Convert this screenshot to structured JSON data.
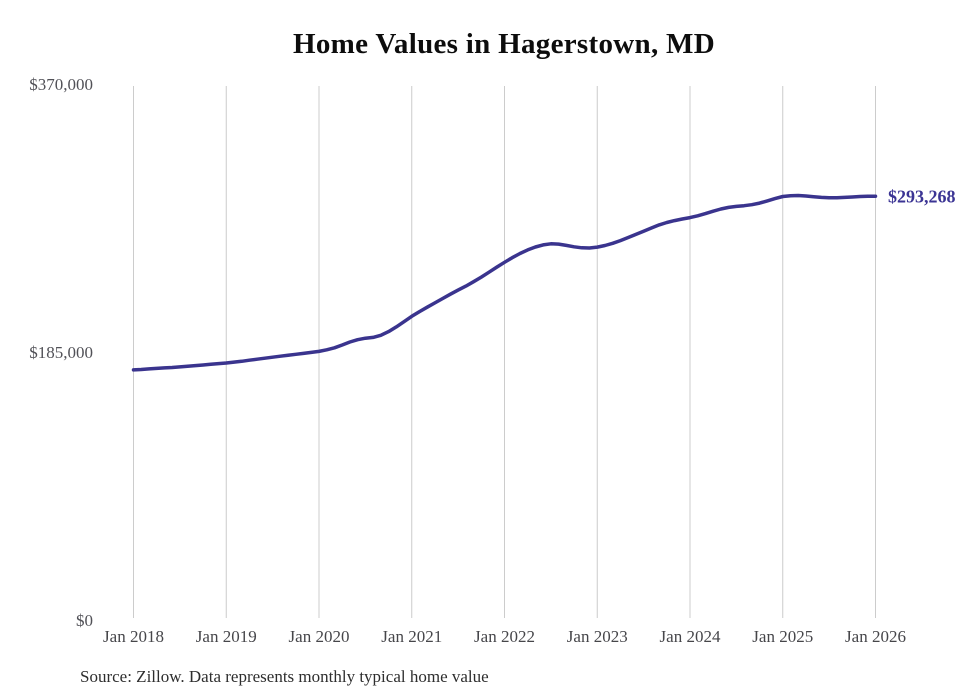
{
  "page": {
    "background": "#ffffff"
  },
  "chart_data": {
    "type": "line",
    "title": "Home Values in Hagerstown, MD",
    "xlabel": "",
    "ylabel": "",
    "ylim": [
      0,
      370000
    ],
    "grid": "vertical-only",
    "legend": "none",
    "x_tick_labels": [
      "Jan 2018",
      "Jan 2019",
      "Jan 2020",
      "Jan 2021",
      "Jan 2022",
      "Jan 2023",
      "Jan 2024",
      "Jan 2025",
      "Jan 2026"
    ],
    "y_tick_labels": [
      "$0",
      "$185,000",
      "$370,000"
    ],
    "colors": {
      "line": "#3a348e",
      "grid": "#cccccc",
      "title": "#0d0d0d",
      "axis_text": "#4a4a4f",
      "end_label": "#3b3494"
    },
    "series": [
      {
        "name": "Typical home value",
        "start": "Jan 2018",
        "end": "Jan 2026",
        "frequency": "monthly",
        "values": [
          173300,
          173600,
          174000,
          174400,
          174700,
          175000,
          175400,
          175800,
          176300,
          176700,
          177200,
          177700,
          178100,
          178700,
          179300,
          180000,
          180700,
          181400,
          182100,
          182800,
          183400,
          184100,
          184700,
          185400,
          186100,
          187200,
          188600,
          190500,
          192600,
          194200,
          195200,
          195800,
          197200,
          199800,
          203000,
          206600,
          210300,
          213600,
          216600,
          219600,
          222600,
          225600,
          228400,
          231200,
          234200,
          237400,
          240800,
          244300,
          247600,
          250800,
          253700,
          256200,
          258200,
          259600,
          260400,
          260200,
          259300,
          258300,
          257600,
          257500,
          258100,
          259200,
          260700,
          262600,
          264700,
          266900,
          269100,
          271300,
          273400,
          275100,
          276400,
          277500,
          278500,
          279700,
          281200,
          282900,
          284400,
          285500,
          286200,
          286700,
          287400,
          288500,
          290000,
          291600,
          293000,
          293600,
          293700,
          293400,
          292900,
          292400,
          292100,
          292200,
          292400,
          292700,
          293000,
          293200,
          293268
        ],
        "final_value": 293268,
        "final_label": "$293,268"
      }
    ],
    "source": "Source: Zillow. Data represents monthly typical home value"
  }
}
